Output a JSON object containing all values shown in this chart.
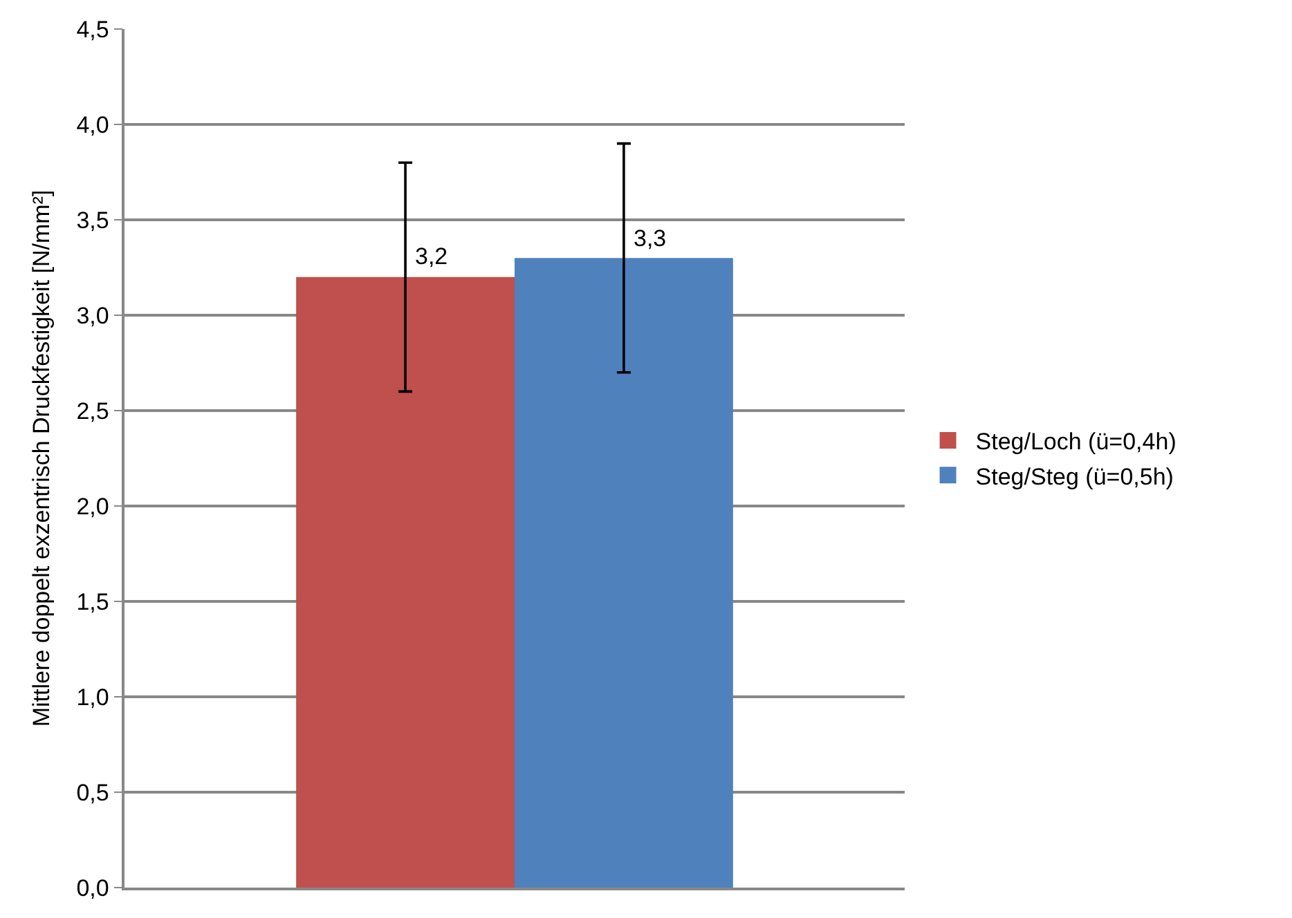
{
  "chart_data": {
    "type": "bar",
    "ylabel": "Mittlere doppelt exzentrisch Druckfestigkeit [N/mm²]",
    "categories": [
      null
    ],
    "series": [
      {
        "name": "Steg/Loch (ü=0,4h)",
        "color": "#c0504d",
        "values": [
          3.2
        ],
        "errors": [
          [
            2.6,
            3.8
          ]
        ],
        "value_labels": [
          "3,2"
        ]
      },
      {
        "name": "Steg/Steg (ü=0,5h)",
        "color": "#4f81bd",
        "values": [
          3.3
        ],
        "errors": [
          [
            2.7,
            3.9
          ]
        ],
        "value_labels": [
          "3,3"
        ]
      }
    ],
    "ylim": [
      0,
      4.5
    ],
    "yticks": [
      {
        "value": 0,
        "label": "0,0"
      },
      {
        "value": 0.5,
        "label": "0,5"
      },
      {
        "value": 1,
        "label": "1,0"
      },
      {
        "value": 1.5,
        "label": "1,5"
      },
      {
        "value": 2,
        "label": "2,0"
      },
      {
        "value": 2.5,
        "label": "2,5"
      },
      {
        "value": 3,
        "label": "3,0"
      },
      {
        "value": 3.5,
        "label": "3,5"
      },
      {
        "value": 4,
        "label": "4,0"
      },
      {
        "value": 4.5,
        "label": "4,5"
      }
    ],
    "grid": "y",
    "legend": "right",
    "tick_labels": "y"
  }
}
